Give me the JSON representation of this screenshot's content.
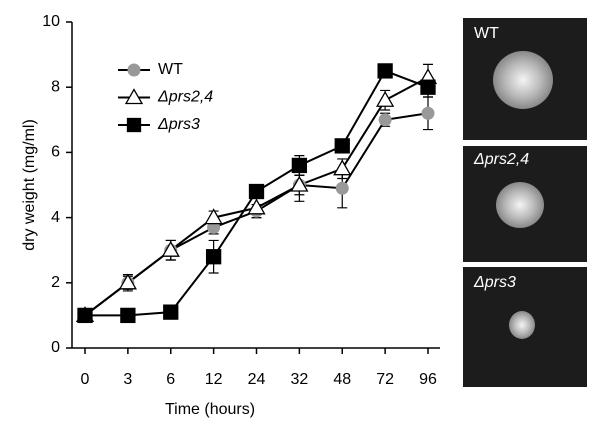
{
  "chart_data": {
    "type": "line",
    "x_label": "Time (hours)",
    "y_label": "dry weight (mg/ml)",
    "categories": [
      "0",
      "3",
      "6",
      "12",
      "24",
      "32",
      "48",
      "72",
      "96"
    ],
    "ylim": [
      0,
      10
    ],
    "yticks": [
      0,
      2,
      4,
      6,
      8,
      10
    ],
    "series": [
      {
        "name": "WT",
        "color": "#999999",
        "marker": "circle",
        "values": [
          1,
          2.0,
          3.0,
          3.7,
          4.2,
          5.0,
          4.9,
          7.0,
          7.2
        ],
        "errors": [
          null,
          0.25,
          0.3,
          0.2,
          0.2,
          0.3,
          0.6,
          0.2,
          0.5
        ]
      },
      {
        "name": "Δprs2,4",
        "color": "#ffffff",
        "marker": "triangle",
        "values": [
          1,
          2.0,
          3.0,
          4.0,
          4.3,
          5.0,
          5.5,
          7.6,
          8.3
        ],
        "errors": [
          null,
          0.2,
          0.3,
          0.2,
          0.3,
          0.5,
          0.3,
          0.3,
          0.4
        ]
      },
      {
        "name": "Δprs3",
        "color": "#000000",
        "marker": "square",
        "values": [
          1,
          1.0,
          1.1,
          2.8,
          4.8,
          5.6,
          6.2,
          8.5,
          8.0
        ],
        "errors": [
          null,
          null,
          null,
          0.5,
          0.2,
          0.3,
          0.2,
          null,
          0.3
        ]
      }
    ],
    "panel_labels": [
      "WT",
      "Δprs2,4",
      "Δprs3"
    ]
  }
}
